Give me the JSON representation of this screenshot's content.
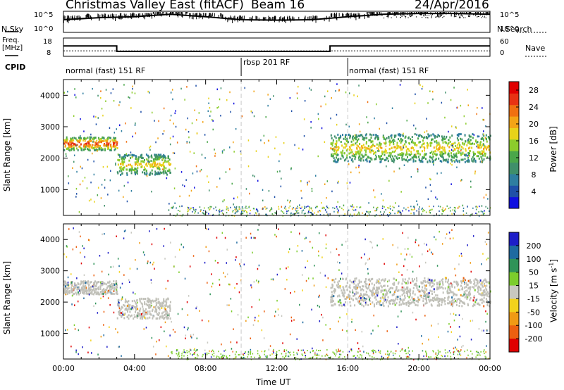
{
  "header": {
    "station": "Christmas Valley East (fitACF)",
    "beam": "Beam 16",
    "date": "24/Apr/2016"
  },
  "top_panels": {
    "nsky_label": "N.Sky",
    "nsearch_label": "N.Search",
    "nsky_ticks": [
      "10^5",
      "10^0"
    ],
    "nsearch_ticks": [
      "10^5",
      "10^0"
    ],
    "freq_label_line1": "Freq.",
    "freq_label_line2": "[MHz]",
    "freq_ticks": [
      "18",
      "8"
    ],
    "nave_label": "Nave",
    "nave_ticks": [
      "60",
      "0"
    ],
    "cpid_label": "CPID"
  },
  "cpid_segments": [
    {
      "label": "normal (fast) 151 RF",
      "start_hour": 0
    },
    {
      "label": "rbsp 201 RF",
      "start_hour": 10
    },
    {
      "label": "normal (fast) 151 RF",
      "start_hour": 16
    }
  ],
  "colors": {
    "power_scale": [
      "#1010e0",
      "#1f50a8",
      "#2e7ea0",
      "#3f8f6a",
      "#4aa64a",
      "#8ccc2c",
      "#e8d21a",
      "#f3a415",
      "#f07010",
      "#e83212",
      "#e00000"
    ],
    "velocity_scale": [
      "#1e1ec8",
      "#1e6aa0",
      "#2f9358",
      "#7ccd2c",
      "#c8c8c0",
      "#f2d21c",
      "#f09a14",
      "#ec6010",
      "#e00000"
    ],
    "ground_scatter": "#c0c0b8"
  },
  "chart_data": [
    {
      "type": "line",
      "name": "N.Sky / N.Search",
      "y_scale": "log",
      "ylim": [
        1,
        100000
      ],
      "x": [
        0,
        2,
        4,
        6,
        8,
        10,
        12,
        14,
        16,
        18,
        20,
        22,
        24
      ],
      "series": [
        {
          "name": "N.Sky",
          "values": [
            1000,
            3000,
            5000,
            20000,
            5000,
            1000,
            800,
            1000,
            5000,
            20000,
            30000,
            30000,
            20000
          ]
        }
      ]
    },
    {
      "type": "line",
      "name": "Freq / Nave",
      "y_left_ticks": [
        8,
        18
      ],
      "y_right_ticks": [
        0,
        60
      ],
      "series": [
        {
          "name": "Freq.",
          "x": [
            0,
            3,
            3,
            15,
            15,
            24
          ],
          "values": [
            13.7,
            13.7,
            10.7,
            10.7,
            13.7,
            13.7
          ]
        },
        {
          "name": "Nave",
          "x": [
            0,
            24
          ],
          "values": [
            18,
            18
          ]
        }
      ]
    },
    {
      "type": "heatmap",
      "name": "Power",
      "xlabel": "Time UT",
      "ylabel": "Slant Range [km]",
      "colorbar_label": "Power [dB]",
      "x_ticks": [
        "00:00",
        "04:00",
        "08:00",
        "12:00",
        "16:00",
        "20:00",
        "00:00"
      ],
      "xlim_hours": [
        0,
        24
      ],
      "ylim": [
        180,
        4500
      ],
      "y_ticks": [
        1000,
        2000,
        3000,
        4000
      ],
      "colorbar_ticks": [
        4,
        8,
        12,
        16,
        20,
        24,
        28
      ],
      "colorbar_range": [
        0,
        30
      ],
      "echo_bands": [
        {
          "start_hour": 0,
          "end_hour": 3,
          "range_km": [
            2280,
            2700
          ],
          "power_db": 26
        },
        {
          "start_hour": 3,
          "end_hour": 6,
          "range_km": [
            1500,
            2150
          ],
          "power_db": 18
        },
        {
          "start_hour": 15,
          "end_hour": 24,
          "range_km": [
            1900,
            2800
          ],
          "power_db": 18
        }
      ]
    },
    {
      "type": "heatmap",
      "name": "Velocity",
      "xlabel": "Time UT",
      "ylabel": "Slant Range [km]",
      "colorbar_label": "Velocity [m s-1]",
      "x_ticks": [
        "00:00",
        "04:00",
        "08:00",
        "12:00",
        "16:00",
        "20:00",
        "00:00"
      ],
      "xlim_hours": [
        0,
        24
      ],
      "ylim": [
        180,
        4500
      ],
      "y_ticks": [
        1000,
        2000,
        3000,
        4000
      ],
      "colorbar_ticks": [
        200,
        100,
        50,
        15,
        -15,
        -50,
        -100,
        -200
      ],
      "echo_bands": [
        {
          "start_hour": 0,
          "end_hour": 3,
          "range_km": [
            2280,
            2700
          ],
          "velocity_class": "ground scatter"
        },
        {
          "start_hour": 3,
          "end_hour": 6,
          "range_km": [
            1500,
            2150
          ],
          "velocity_class": "ground scatter"
        },
        {
          "start_hour": 15,
          "end_hour": 24,
          "range_km": [
            1900,
            2800
          ],
          "velocity_class": "ground scatter"
        }
      ]
    }
  ],
  "axes": {
    "xlabel": "Time UT",
    "ylabel": "Slant Range [km]",
    "power_colorbar_label": "Power [dB]",
    "velocity_colorbar_label": "Velocity [m s",
    "velocity_colorbar_sup": "-1",
    "velocity_colorbar_close": "]"
  }
}
